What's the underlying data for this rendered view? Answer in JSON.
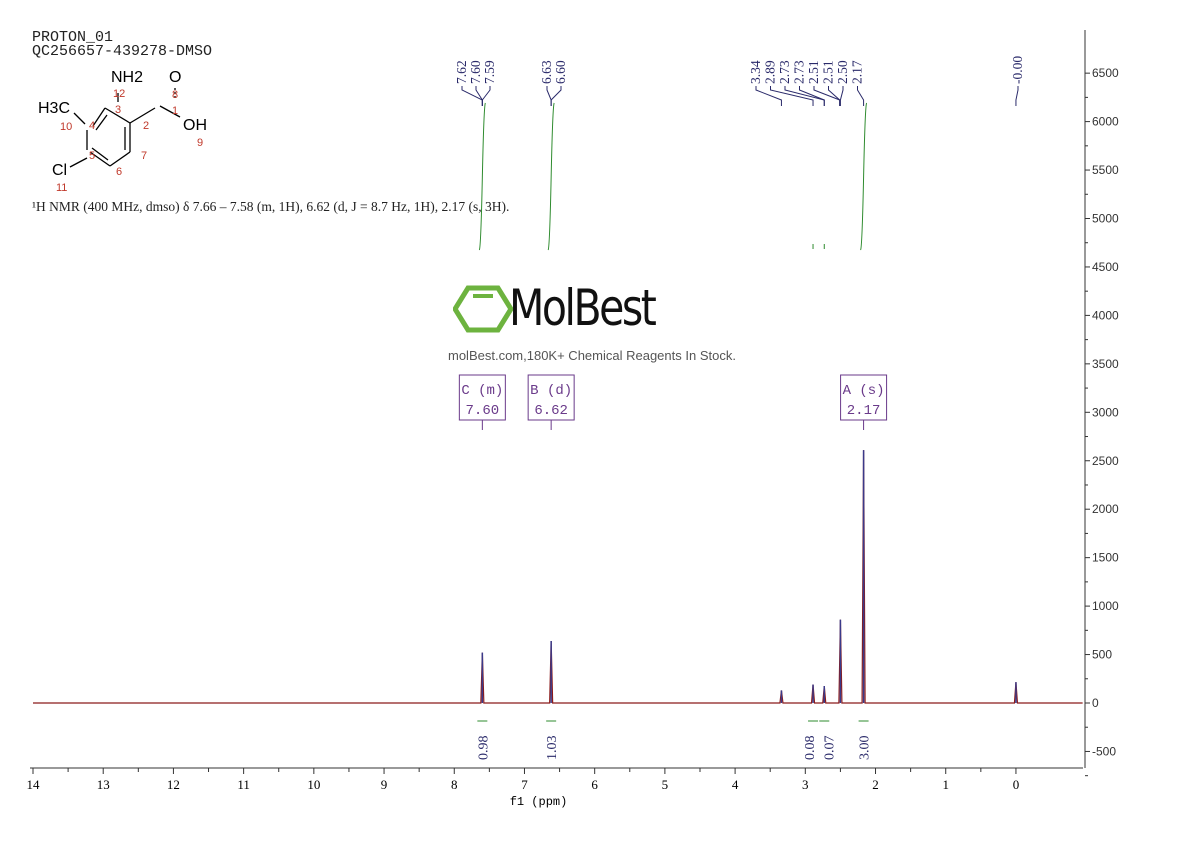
{
  "header": {
    "line1": "PROTON_01",
    "line2": "QC256657-439278-DMSO"
  },
  "structure": {
    "groups": [
      "NH2",
      "O",
      "H3C",
      "OH",
      "Cl"
    ],
    "atom_numbers": [
      "1",
      "2",
      "3",
      "4",
      "5",
      "6",
      "7",
      "8",
      "9",
      "10",
      "11",
      "12"
    ]
  },
  "nmr_summary": "¹H NMR (400 MHz, dmso) δ 7.66 – 7.58 (m, 1H), 6.62 (d, J = 8.7 Hz, 1H), 2.17 (s, 3H).",
  "watermark": {
    "brand": "MolBest",
    "tagline": "molBest.com,180K+ Chemical Reagents In Stock.",
    "color": "#6db33f"
  },
  "chart_data": {
    "type": "line",
    "xlabel": "f1 (ppm)",
    "xlim": [
      14,
      -0.95
    ],
    "ylim": [
      -650,
      6900
    ],
    "x_ticks": [
      14,
      13,
      12,
      11,
      10,
      9,
      8,
      7,
      6,
      5,
      4,
      3,
      2,
      1,
      0
    ],
    "y_ticks": [
      6500,
      6000,
      5500,
      5000,
      4500,
      4000,
      3500,
      3000,
      2500,
      2000,
      1500,
      1000,
      500,
      0,
      -500
    ],
    "spectrum_color": "#8b1a1a",
    "peaks": [
      {
        "ppm": 7.6,
        "height": 520
      },
      {
        "ppm": 6.62,
        "height": 640
      },
      {
        "ppm": 3.34,
        "height": 130
      },
      {
        "ppm": 2.89,
        "height": 190
      },
      {
        "ppm": 2.73,
        "height": 175
      },
      {
        "ppm": 2.5,
        "height": 860
      },
      {
        "ppm": 2.17,
        "height": 2610
      },
      {
        "ppm": 0.0,
        "height": 215
      }
    ],
    "peak_labels": [
      [
        "7.62",
        "7.60",
        "7.59"
      ],
      [
        "6.63",
        "6.60"
      ],
      [
        "3.34",
        "2.89",
        "2.73",
        "2.73",
        "2.51",
        "2.51",
        "2.50",
        "2.17"
      ],
      [
        "-0.00"
      ]
    ],
    "multiplets": [
      {
        "letter": "C",
        "mult": "(m)",
        "shift": "7.60",
        "ppm": 7.6
      },
      {
        "letter": "B",
        "mult": "(d)",
        "shift": "6.62",
        "ppm": 6.62
      },
      {
        "letter": "A",
        "mult": "(s)",
        "shift": "2.17",
        "ppm": 2.17
      }
    ],
    "integrals": [
      {
        "ppm": 7.6,
        "value": "0.98"
      },
      {
        "ppm": 6.62,
        "value": "1.03"
      },
      {
        "ppm": 2.89,
        "value": "0.08"
      },
      {
        "ppm": 2.73,
        "value": "0.07"
      },
      {
        "ppm": 2.17,
        "value": "3.00"
      }
    ]
  }
}
